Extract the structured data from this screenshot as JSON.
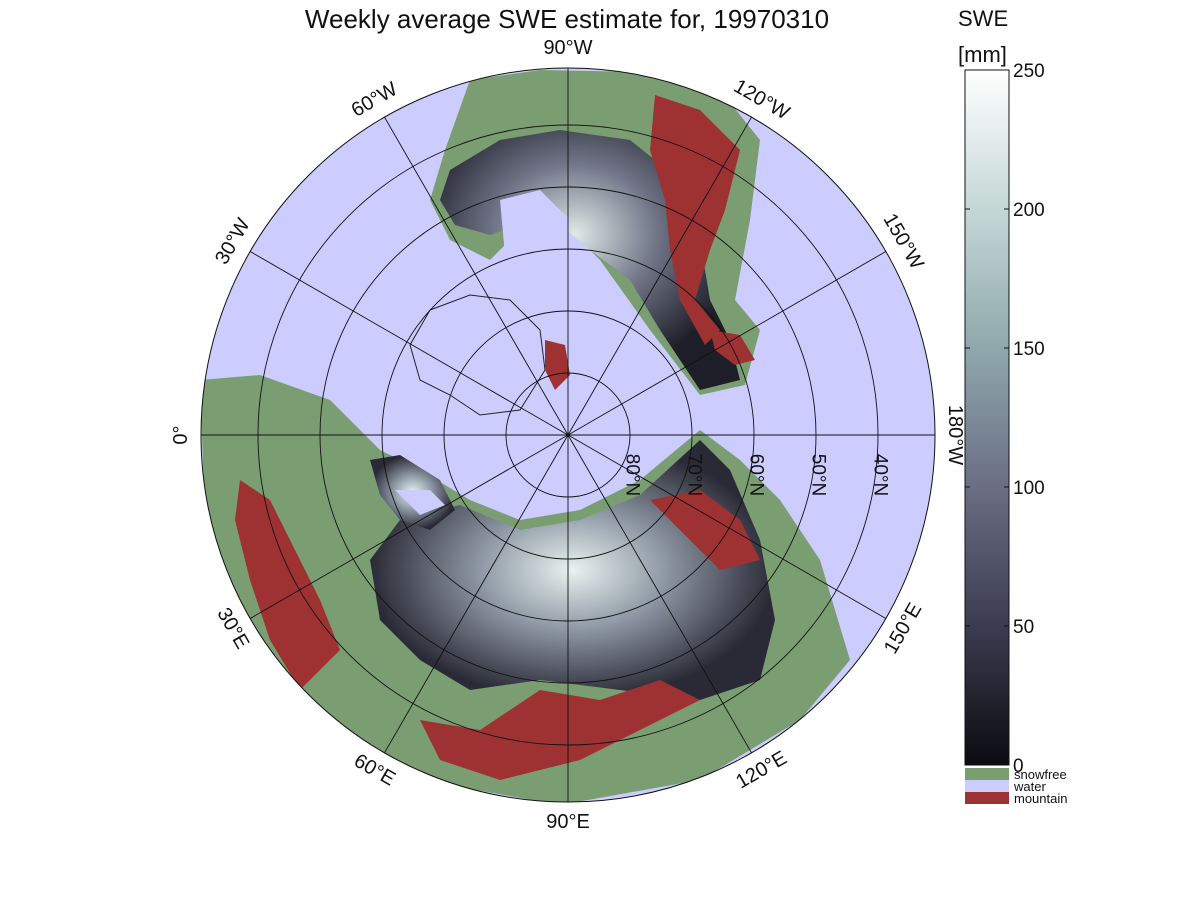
{
  "title": "Weekly average SWE estimate for, 19970310",
  "colorbar": {
    "label_line1": "SWE",
    "label_line2": "[mm]",
    "ticks": [
      "0",
      "50",
      "100",
      "150",
      "200",
      "250"
    ],
    "range": [
      0,
      250
    ],
    "colors": [
      "#0b0b10",
      "#3c3c50",
      "#6a6e84",
      "#8fa8ac",
      "#c4d8d6",
      "#ffffff"
    ]
  },
  "categories": [
    {
      "label": "snowfree",
      "color": "#7a9e72"
    },
    {
      "label": "water",
      "color": "#ccccff"
    },
    {
      "label": "mountain",
      "color": "#9e3232"
    }
  ],
  "longitude_labels": [
    {
      "text": "90°W",
      "deg": 0
    },
    {
      "text": "120°W",
      "deg": 30
    },
    {
      "text": "150°W",
      "deg": 60
    },
    {
      "text": "180°W",
      "deg": 90
    },
    {
      "text": "150°E",
      "deg": 120
    },
    {
      "text": "120°E",
      "deg": 150
    },
    {
      "text": "90°E",
      "deg": 180
    },
    {
      "text": "60°E",
      "deg": 210
    },
    {
      "text": "30°E",
      "deg": 240
    },
    {
      "text": "0°",
      "deg": 270
    },
    {
      "text": "30°W",
      "deg": 300
    },
    {
      "text": "60°W",
      "deg": 330
    }
  ],
  "latitude_labels": [
    "80°N",
    "70°N",
    "60°N",
    "50°N",
    "40°N"
  ]
}
